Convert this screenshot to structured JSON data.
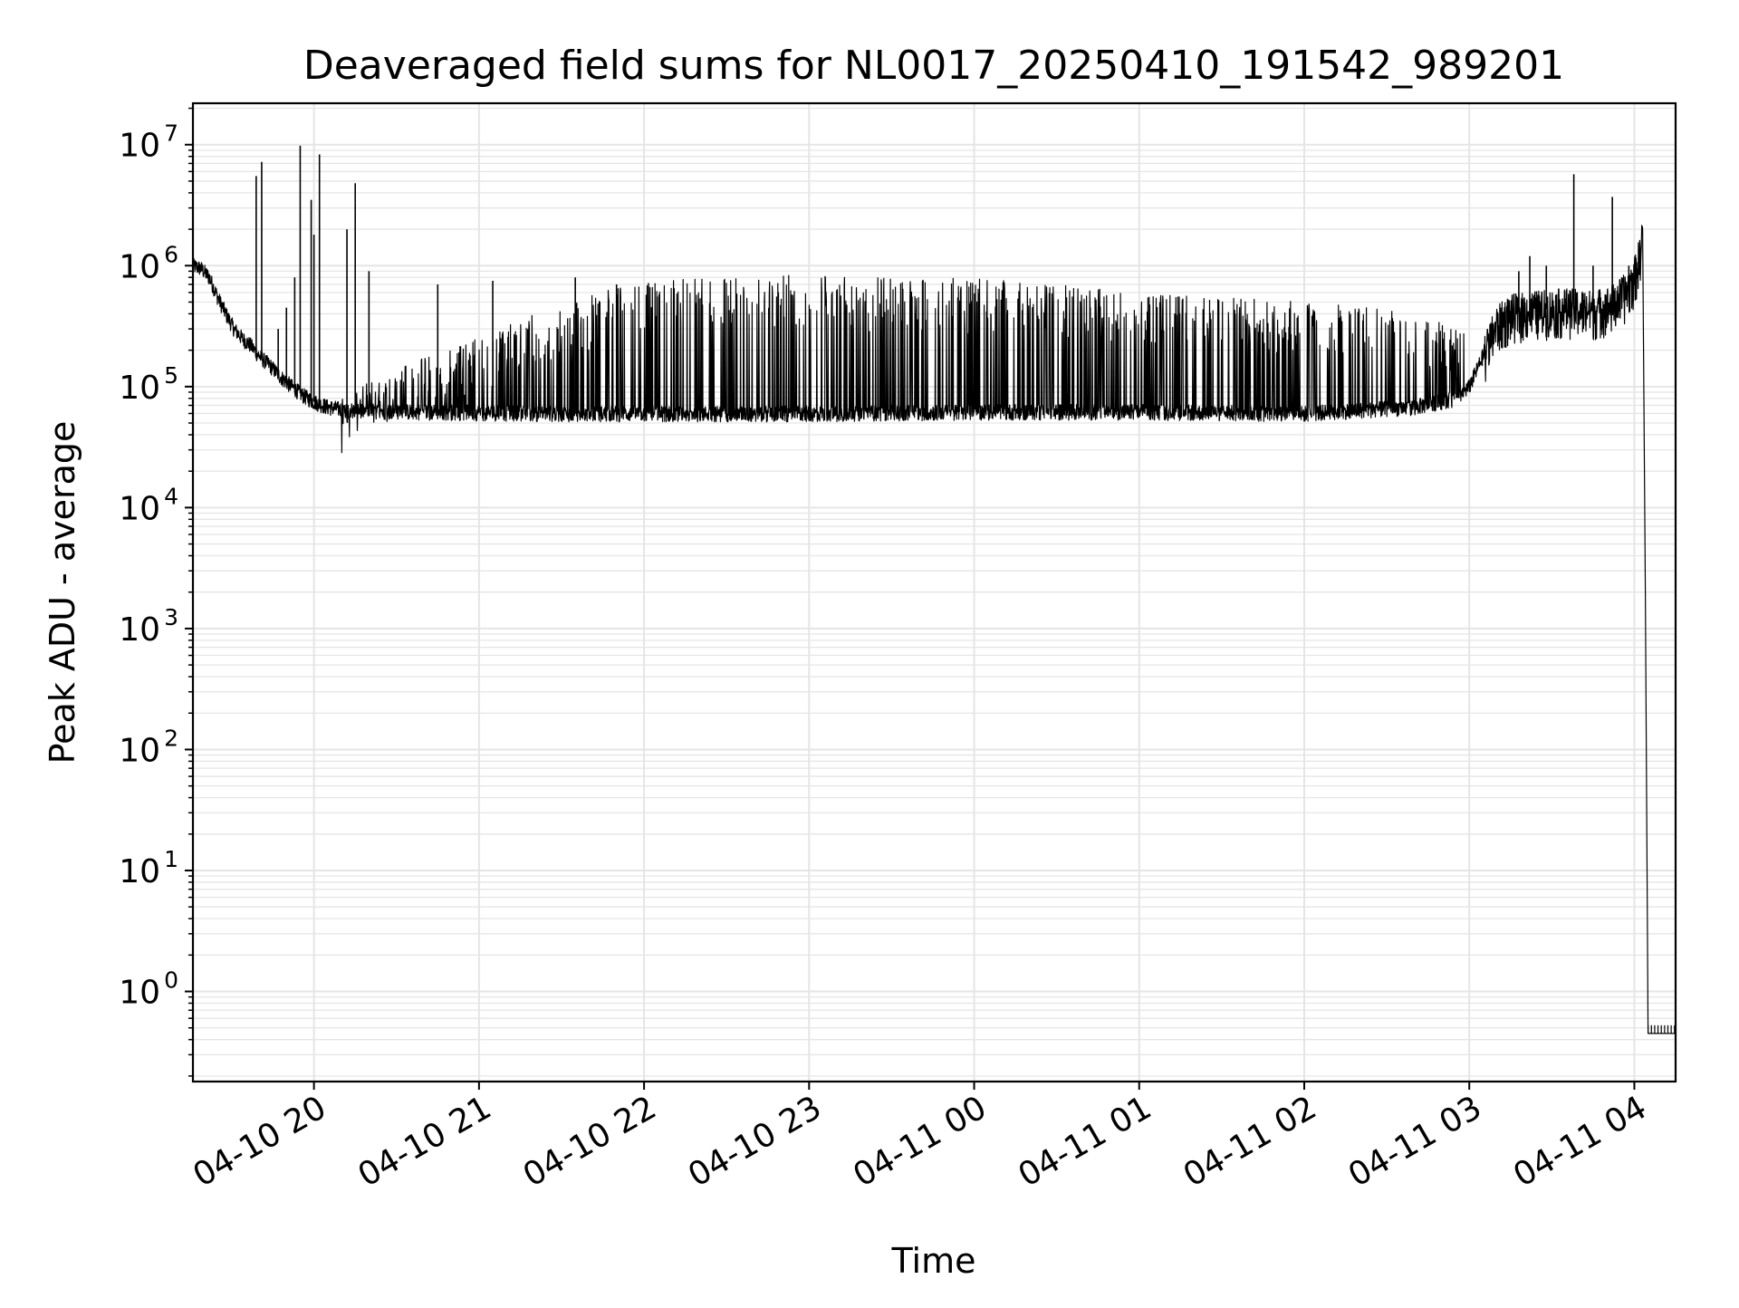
{
  "chart_data": {
    "type": "line",
    "title": "Deaveraged field sums for NL0017_20250410_191542_989201",
    "xlabel": "Time",
    "ylabel": "Peak ADU - average",
    "y_scale": "log",
    "ylim": [
      0.18,
      22000000
    ],
    "xlim": [
      "2025-04-10 19:16",
      "2025-04-11 04:15"
    ],
    "grid": true,
    "line_color": "#000000",
    "grid_color": "#e5e5e5",
    "x_ticks": [
      {
        "time": "2025-04-10 20:00",
        "label": "04-10 20"
      },
      {
        "time": "2025-04-10 21:00",
        "label": "04-10 21"
      },
      {
        "time": "2025-04-10 22:00",
        "label": "04-10 22"
      },
      {
        "time": "2025-04-10 23:00",
        "label": "04-10 23"
      },
      {
        "time": "2025-04-11 00:00",
        "label": "04-11 00"
      },
      {
        "time": "2025-04-11 01:00",
        "label": "04-11 01"
      },
      {
        "time": "2025-04-11 02:00",
        "label": "04-11 02"
      },
      {
        "time": "2025-04-11 03:00",
        "label": "04-11 03"
      },
      {
        "time": "2025-04-11 04:00",
        "label": "04-11 04"
      }
    ],
    "y_ticks": [
      {
        "value": 1,
        "base": "10",
        "exp": "0"
      },
      {
        "value": 10,
        "base": "10",
        "exp": "1"
      },
      {
        "value": 100,
        "base": "10",
        "exp": "2"
      },
      {
        "value": 1000,
        "base": "10",
        "exp": "3"
      },
      {
        "value": 10000,
        "base": "10",
        "exp": "4"
      },
      {
        "value": 100000,
        "base": "10",
        "exp": "5"
      },
      {
        "value": 1000000,
        "base": "10",
        "exp": "6"
      },
      {
        "value": 10000000,
        "base": "10",
        "exp": "7"
      }
    ],
    "series": [
      {
        "points": [
          [
            "2025-04-10 19:16",
            1000000
          ],
          [
            "2025-04-10 19:19",
            950000
          ],
          [
            "2025-04-10 19:22",
            800000
          ],
          [
            "2025-04-10 19:25",
            550000
          ],
          [
            "2025-04-10 19:28",
            400000
          ],
          [
            "2025-04-10 19:31",
            300000
          ],
          [
            "2025-04-10 19:34",
            250000
          ],
          [
            "2025-04-10 19:37",
            220000
          ],
          [
            "2025-04-10 19:40",
            180000
          ],
          [
            "2025-04-10 19:44",
            150000
          ],
          [
            "2025-04-10 19:48",
            120000
          ],
          [
            "2025-04-10 19:52",
            100000
          ],
          [
            "2025-04-10 19:56",
            85000
          ],
          [
            "2025-04-10 20:00",
            75000
          ],
          [
            "2025-04-10 20:05",
            68000
          ],
          [
            "2025-04-10 20:10",
            65000
          ],
          [
            "2025-04-10 20:20",
            63000
          ],
          [
            "2025-04-10 20:40",
            62000
          ],
          [
            "2025-04-10 21:00",
            61000
          ],
          [
            "2025-04-10 21:30",
            60000
          ],
          [
            "2025-04-10 22:00",
            60000
          ],
          [
            "2025-04-10 23:00",
            60000
          ],
          [
            "2025-04-11 00:00",
            62000
          ],
          [
            "2025-04-11 01:00",
            62000
          ],
          [
            "2025-04-11 02:00",
            60000
          ],
          [
            "2025-04-11 02:40",
            68000
          ],
          [
            "2025-04-11 02:55",
            80000
          ],
          [
            "2025-04-11 03:00",
            100000
          ],
          [
            "2025-04-11 03:05",
            180000
          ],
          [
            "2025-04-11 03:10",
            320000
          ],
          [
            "2025-04-11 03:15",
            400000
          ],
          [
            "2025-04-11 03:25",
            430000
          ],
          [
            "2025-04-11 03:35",
            450000
          ],
          [
            "2025-04-11 03:45",
            430000
          ],
          [
            "2025-04-11 03:52",
            480000
          ],
          [
            "2025-04-11 03:57",
            600000
          ],
          [
            "2025-04-11 04:00",
            800000
          ],
          [
            "2025-04-11 04:02",
            1200000
          ],
          [
            "2025-04-11 04:03",
            2000000
          ],
          [
            "2025-04-11 04:04",
            2000
          ],
          [
            "2025-04-11 04:05",
            0.45
          ],
          [
            "2025-04-11 04:15",
            0.45
          ]
        ],
        "band": [
          [
            "2025-04-10 20:10",
            80000
          ],
          [
            "2025-04-10 20:30",
            150000
          ],
          [
            "2025-04-10 21:00",
            250000
          ],
          [
            "2025-04-10 21:30",
            500000
          ],
          [
            "2025-04-10 22:00",
            750000
          ],
          [
            "2025-04-10 22:30",
            800000
          ],
          [
            "2025-04-10 23:00",
            850000
          ],
          [
            "2025-04-10 23:30",
            800000
          ],
          [
            "2025-04-11 00:00",
            780000
          ],
          [
            "2025-04-11 00:30",
            700000
          ],
          [
            "2025-04-11 01:00",
            600000
          ],
          [
            "2025-04-11 01:30",
            550000
          ],
          [
            "2025-04-11 02:00",
            500000
          ],
          [
            "2025-04-11 02:30",
            450000
          ],
          [
            "2025-04-11 02:58",
            300000
          ]
        ],
        "spikes": [
          [
            "2025-04-10 19:39",
            5500000
          ],
          [
            "2025-04-10 19:41",
            7200000
          ],
          [
            "2025-04-10 19:47",
            300000
          ],
          [
            "2025-04-10 19:50",
            450000
          ],
          [
            "2025-04-10 19:53",
            800000
          ],
          [
            "2025-04-10 19:55",
            9800000
          ],
          [
            "2025-04-10 19:59",
            3500000
          ],
          [
            "2025-04-10 20:00",
            1800000
          ],
          [
            "2025-04-10 20:02",
            8300000
          ],
          [
            "2025-04-10 20:12",
            2000000
          ],
          [
            "2025-04-10 20:15",
            4800000
          ],
          [
            "2025-04-10 20:20",
            900000
          ],
          [
            "2025-04-10 20:45",
            700000
          ],
          [
            "2025-04-10 21:05",
            750000
          ],
          [
            "2025-04-10 21:35",
            800000
          ],
          [
            "2025-04-10 21:50",
            700000
          ],
          [
            "2025-04-11 03:18",
            900000
          ],
          [
            "2025-04-11 03:22",
            1200000
          ],
          [
            "2025-04-11 03:28",
            1000000
          ],
          [
            "2025-04-11 03:38",
            5700000
          ],
          [
            "2025-04-11 03:45",
            1000000
          ],
          [
            "2025-04-11 03:52",
            3700000
          ],
          [
            "2025-04-11 03:58",
            1000000
          ]
        ]
      }
    ]
  }
}
